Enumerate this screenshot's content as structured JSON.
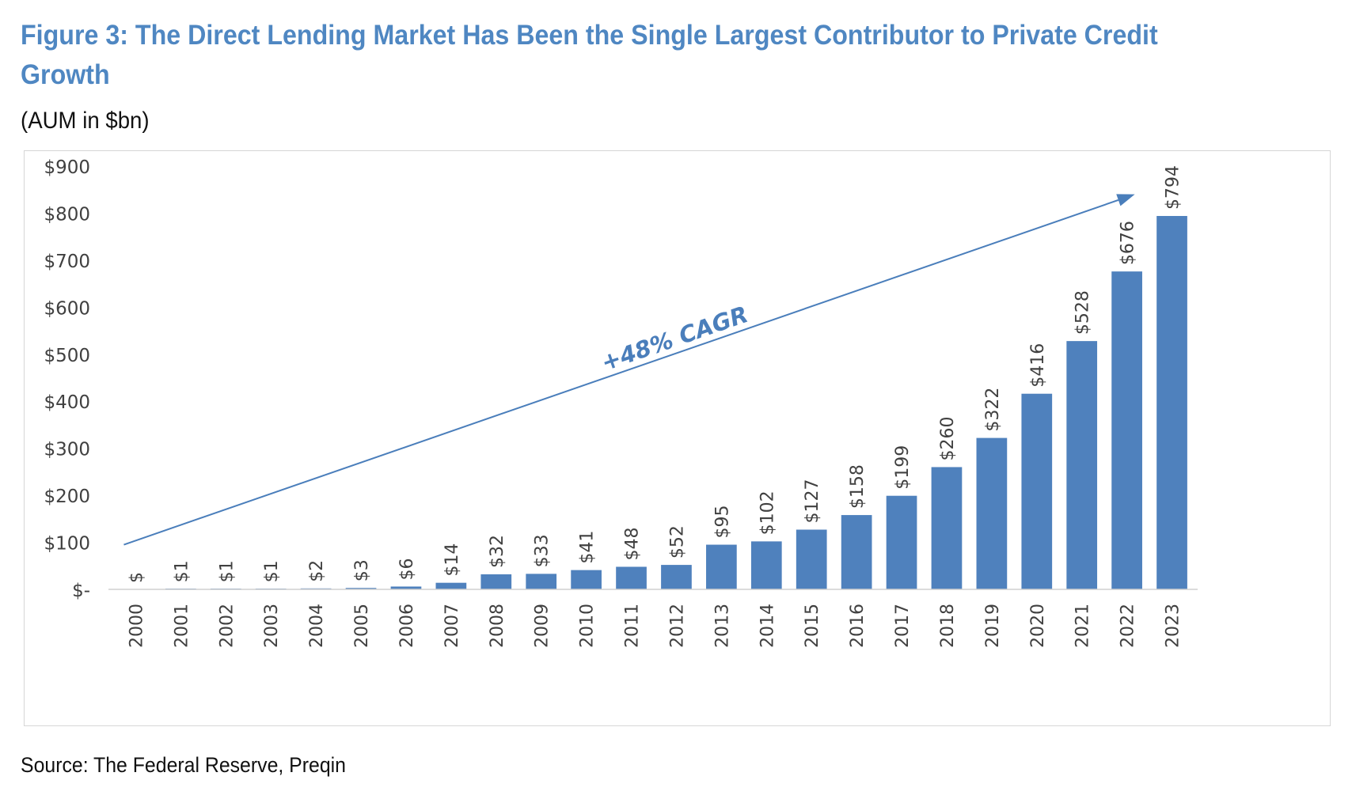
{
  "figure": {
    "title": "Figure 3: The Direct Lending Market Has Been the Single Largest Contributor to Private Credit Growth",
    "subtitle": "(AUM in $bn)",
    "source": "Source: The Federal Reserve, Preqin"
  },
  "colors": {
    "bar": "#4f81bd",
    "title": "#4f87c2",
    "arrow": "#4a7ebb",
    "annotation": "#4a7ebb"
  },
  "chart_data": {
    "type": "bar",
    "categories": [
      "2000",
      "2001",
      "2002",
      "2003",
      "2004",
      "2005",
      "2006",
      "2007",
      "2008",
      "2009",
      "2010",
      "2011",
      "2012",
      "2013",
      "2014",
      "2015",
      "2016",
      "2017",
      "2018",
      "2019",
      "2020",
      "2021",
      "2022",
      "2023"
    ],
    "values": [
      0,
      1,
      1,
      1,
      2,
      3,
      6,
      14,
      32,
      33,
      41,
      48,
      52,
      95,
      102,
      127,
      158,
      199,
      260,
      322,
      416,
      528,
      676,
      794
    ],
    "data_labels": [
      "$",
      "$1",
      "$1",
      "$1",
      "$2",
      "$3",
      "$6",
      "$14",
      "$32",
      "$33",
      "$41",
      "$48",
      "$52",
      "$95",
      "$102",
      "$127",
      "$158",
      "$199",
      "$260",
      "$322",
      "$416",
      "$528",
      "$676",
      "$794"
    ],
    "yticks": [
      0,
      100,
      200,
      300,
      400,
      500,
      600,
      700,
      800,
      900
    ],
    "ytick_labels": [
      "$-",
      "$100",
      "$200",
      "$300",
      "$400",
      "$500",
      "$600",
      "$700",
      "$800",
      "$900"
    ],
    "ylim": [
      0,
      900
    ],
    "xlabel": "",
    "ylabel": "",
    "grid": false,
    "annotation": {
      "text": "+48% CAGR",
      "arrow_from": {
        "x": "2000",
        "y": 95
      },
      "arrow_to": {
        "x": "2022",
        "y": 840
      }
    }
  }
}
